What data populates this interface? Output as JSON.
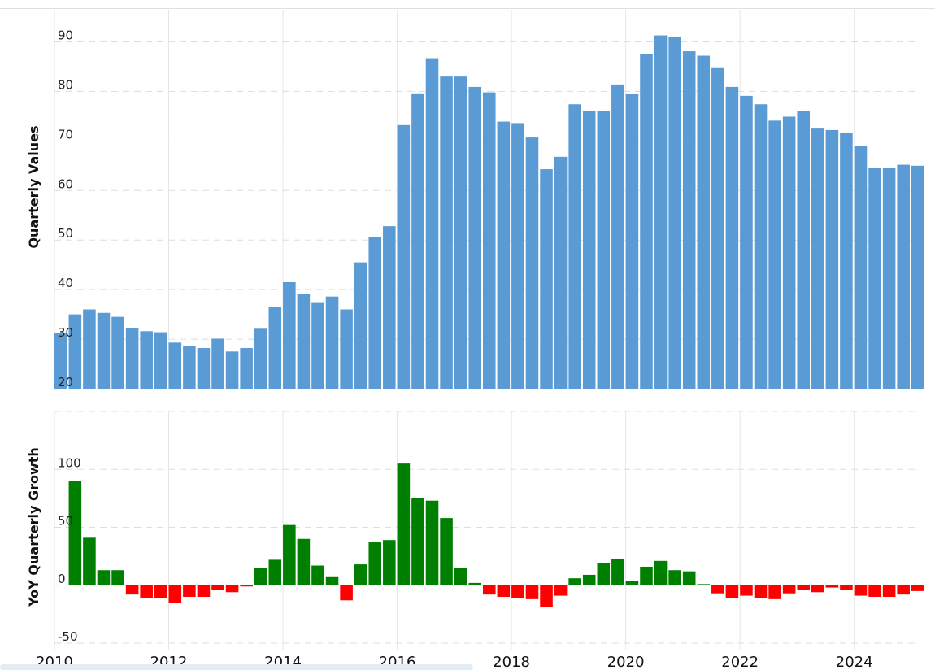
{
  "chart_data": [
    {
      "type": "bar",
      "ylabel": "Quarterly Values",
      "ylim": [
        20,
        95
      ],
      "yticks": [
        20,
        30,
        40,
        50,
        60,
        70,
        80,
        90
      ],
      "xlim": [
        2010.0,
        2025.1
      ],
      "xticks": [
        2010,
        2012,
        2014,
        2016,
        2018,
        2020,
        2022,
        2024
      ],
      "grid": true,
      "color": "#5b9bd5",
      "x": [
        2010.0,
        2010.25,
        2010.5,
        2010.75,
        2011.0,
        2011.25,
        2011.5,
        2011.75,
        2012.0,
        2012.25,
        2012.5,
        2012.75,
        2013.0,
        2013.25,
        2013.5,
        2013.75,
        2014.0,
        2014.25,
        2014.5,
        2014.75,
        2015.0,
        2015.25,
        2015.5,
        2015.75,
        2016.0,
        2016.25,
        2016.5,
        2016.75,
        2017.0,
        2017.25,
        2017.5,
        2017.75,
        2018.0,
        2018.25,
        2018.5,
        2018.75,
        2019.0,
        2019.25,
        2019.5,
        2019.75,
        2020.0,
        2020.25,
        2020.5,
        2020.75,
        2021.0,
        2021.25,
        2021.5,
        2021.75,
        2022.0,
        2022.25,
        2022.5,
        2022.75,
        2023.0,
        2023.25,
        2023.5,
        2023.75,
        2024.0,
        2024.25,
        2024.5,
        2024.75,
        2025.0
      ],
      "values": [
        31.2,
        35.0,
        36.0,
        35.3,
        34.5,
        32.2,
        31.6,
        31.4,
        29.3,
        28.7,
        28.2,
        30.1,
        27.5,
        28.2,
        32.1,
        36.5,
        41.5,
        39.1,
        37.3,
        38.6,
        36.0,
        45.5,
        50.6,
        52.8,
        73.2,
        79.6,
        86.7,
        83.0,
        83.0,
        80.9,
        79.8,
        73.9,
        73.6,
        70.7,
        64.3,
        66.8,
        77.4,
        76.1,
        76.1,
        81.4,
        79.5,
        87.5,
        91.3,
        91.0,
        88.1,
        87.2,
        84.7,
        80.9,
        79.1,
        77.4,
        74.1,
        74.9,
        76.1,
        72.5,
        72.2,
        71.7,
        69.0,
        64.6,
        64.6,
        65.2,
        65.0
      ]
    },
    {
      "type": "bar",
      "ylabel": "YoY Quarterly Growth",
      "ylim": [
        -50,
        150
      ],
      "yticks": [
        -50,
        0,
        50,
        100
      ],
      "xlim": [
        2010.0,
        2025.1
      ],
      "xticks": [
        2010,
        2012,
        2014,
        2016,
        2018,
        2020,
        2022,
        2024
      ],
      "grid": true,
      "positive_color": "#008000",
      "negative_color": "#ff0000",
      "x": [
        2010.25,
        2010.5,
        2010.75,
        2011.0,
        2011.25,
        2011.5,
        2011.75,
        2012.0,
        2012.25,
        2012.5,
        2012.75,
        2013.0,
        2013.25,
        2013.5,
        2013.75,
        2014.0,
        2014.25,
        2014.5,
        2014.75,
        2015.0,
        2015.25,
        2015.5,
        2015.75,
        2016.0,
        2016.25,
        2016.5,
        2016.75,
        2017.0,
        2017.25,
        2017.5,
        2017.75,
        2018.0,
        2018.25,
        2018.5,
        2018.75,
        2019.0,
        2019.25,
        2019.5,
        2019.75,
        2020.0,
        2020.25,
        2020.5,
        2020.75,
        2021.0,
        2021.25,
        2021.5,
        2021.75,
        2022.0,
        2022.25,
        2022.5,
        2022.75,
        2023.0,
        2023.25,
        2023.5,
        2023.75,
        2024.0,
        2024.25,
        2024.5,
        2024.75,
        2025.0
      ],
      "values": [
        90,
        41,
        13,
        13,
        -8,
        -11,
        -11,
        -15,
        -10,
        -10,
        -4,
        -6,
        -1,
        15,
        22,
        52,
        40,
        17,
        7,
        -13,
        18,
        37,
        39,
        105,
        75,
        73,
        58,
        15,
        2,
        -8,
        -10,
        -11,
        -12,
        -19,
        -9,
        6,
        9,
        19,
        23,
        4,
        16,
        21,
        13,
        12,
        1,
        -7,
        -11,
        -9,
        -11,
        -12,
        -7,
        -4,
        -6,
        -2,
        -4,
        -9,
        -10,
        -10,
        -8,
        -5
      ]
    }
  ]
}
